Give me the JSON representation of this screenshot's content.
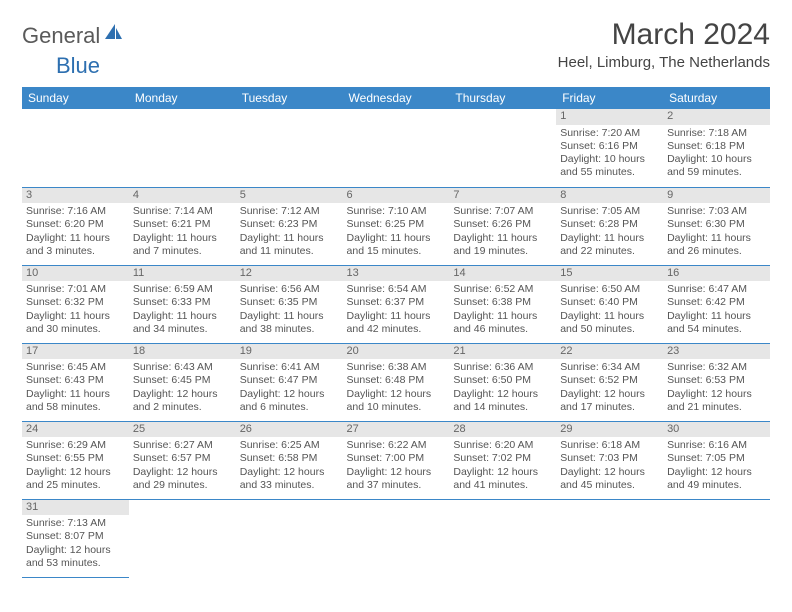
{
  "logo": {
    "general": "General",
    "blue": "Blue"
  },
  "title": "March 2024",
  "location": "Heel, Limburg, The Netherlands",
  "colors": {
    "header_bg": "#3b87c8",
    "header_text": "#ffffff",
    "daynum_bg": "#e6e6e6",
    "border": "#3b87c8",
    "logo_gray": "#5a5a5a",
    "logo_blue": "#2d6fb0",
    "body_text": "#555555"
  },
  "weekdays": [
    "Sunday",
    "Monday",
    "Tuesday",
    "Wednesday",
    "Thursday",
    "Friday",
    "Saturday"
  ],
  "weeks": [
    [
      null,
      null,
      null,
      null,
      null,
      {
        "n": "1",
        "sr": "Sunrise: 7:20 AM",
        "ss": "Sunset: 6:16 PM",
        "d1": "Daylight: 10 hours",
        "d2": "and 55 minutes."
      },
      {
        "n": "2",
        "sr": "Sunrise: 7:18 AM",
        "ss": "Sunset: 6:18 PM",
        "d1": "Daylight: 10 hours",
        "d2": "and 59 minutes."
      }
    ],
    [
      {
        "n": "3",
        "sr": "Sunrise: 7:16 AM",
        "ss": "Sunset: 6:20 PM",
        "d1": "Daylight: 11 hours",
        "d2": "and 3 minutes."
      },
      {
        "n": "4",
        "sr": "Sunrise: 7:14 AM",
        "ss": "Sunset: 6:21 PM",
        "d1": "Daylight: 11 hours",
        "d2": "and 7 minutes."
      },
      {
        "n": "5",
        "sr": "Sunrise: 7:12 AM",
        "ss": "Sunset: 6:23 PM",
        "d1": "Daylight: 11 hours",
        "d2": "and 11 minutes."
      },
      {
        "n": "6",
        "sr": "Sunrise: 7:10 AM",
        "ss": "Sunset: 6:25 PM",
        "d1": "Daylight: 11 hours",
        "d2": "and 15 minutes."
      },
      {
        "n": "7",
        "sr": "Sunrise: 7:07 AM",
        "ss": "Sunset: 6:26 PM",
        "d1": "Daylight: 11 hours",
        "d2": "and 19 minutes."
      },
      {
        "n": "8",
        "sr": "Sunrise: 7:05 AM",
        "ss": "Sunset: 6:28 PM",
        "d1": "Daylight: 11 hours",
        "d2": "and 22 minutes."
      },
      {
        "n": "9",
        "sr": "Sunrise: 7:03 AM",
        "ss": "Sunset: 6:30 PM",
        "d1": "Daylight: 11 hours",
        "d2": "and 26 minutes."
      }
    ],
    [
      {
        "n": "10",
        "sr": "Sunrise: 7:01 AM",
        "ss": "Sunset: 6:32 PM",
        "d1": "Daylight: 11 hours",
        "d2": "and 30 minutes."
      },
      {
        "n": "11",
        "sr": "Sunrise: 6:59 AM",
        "ss": "Sunset: 6:33 PM",
        "d1": "Daylight: 11 hours",
        "d2": "and 34 minutes."
      },
      {
        "n": "12",
        "sr": "Sunrise: 6:56 AM",
        "ss": "Sunset: 6:35 PM",
        "d1": "Daylight: 11 hours",
        "d2": "and 38 minutes."
      },
      {
        "n": "13",
        "sr": "Sunrise: 6:54 AM",
        "ss": "Sunset: 6:37 PM",
        "d1": "Daylight: 11 hours",
        "d2": "and 42 minutes."
      },
      {
        "n": "14",
        "sr": "Sunrise: 6:52 AM",
        "ss": "Sunset: 6:38 PM",
        "d1": "Daylight: 11 hours",
        "d2": "and 46 minutes."
      },
      {
        "n": "15",
        "sr": "Sunrise: 6:50 AM",
        "ss": "Sunset: 6:40 PM",
        "d1": "Daylight: 11 hours",
        "d2": "and 50 minutes."
      },
      {
        "n": "16",
        "sr": "Sunrise: 6:47 AM",
        "ss": "Sunset: 6:42 PM",
        "d1": "Daylight: 11 hours",
        "d2": "and 54 minutes."
      }
    ],
    [
      {
        "n": "17",
        "sr": "Sunrise: 6:45 AM",
        "ss": "Sunset: 6:43 PM",
        "d1": "Daylight: 11 hours",
        "d2": "and 58 minutes."
      },
      {
        "n": "18",
        "sr": "Sunrise: 6:43 AM",
        "ss": "Sunset: 6:45 PM",
        "d1": "Daylight: 12 hours",
        "d2": "and 2 minutes."
      },
      {
        "n": "19",
        "sr": "Sunrise: 6:41 AM",
        "ss": "Sunset: 6:47 PM",
        "d1": "Daylight: 12 hours",
        "d2": "and 6 minutes."
      },
      {
        "n": "20",
        "sr": "Sunrise: 6:38 AM",
        "ss": "Sunset: 6:48 PM",
        "d1": "Daylight: 12 hours",
        "d2": "and 10 minutes."
      },
      {
        "n": "21",
        "sr": "Sunrise: 6:36 AM",
        "ss": "Sunset: 6:50 PM",
        "d1": "Daylight: 12 hours",
        "d2": "and 14 minutes."
      },
      {
        "n": "22",
        "sr": "Sunrise: 6:34 AM",
        "ss": "Sunset: 6:52 PM",
        "d1": "Daylight: 12 hours",
        "d2": "and 17 minutes."
      },
      {
        "n": "23",
        "sr": "Sunrise: 6:32 AM",
        "ss": "Sunset: 6:53 PM",
        "d1": "Daylight: 12 hours",
        "d2": "and 21 minutes."
      }
    ],
    [
      {
        "n": "24",
        "sr": "Sunrise: 6:29 AM",
        "ss": "Sunset: 6:55 PM",
        "d1": "Daylight: 12 hours",
        "d2": "and 25 minutes."
      },
      {
        "n": "25",
        "sr": "Sunrise: 6:27 AM",
        "ss": "Sunset: 6:57 PM",
        "d1": "Daylight: 12 hours",
        "d2": "and 29 minutes."
      },
      {
        "n": "26",
        "sr": "Sunrise: 6:25 AM",
        "ss": "Sunset: 6:58 PM",
        "d1": "Daylight: 12 hours",
        "d2": "and 33 minutes."
      },
      {
        "n": "27",
        "sr": "Sunrise: 6:22 AM",
        "ss": "Sunset: 7:00 PM",
        "d1": "Daylight: 12 hours",
        "d2": "and 37 minutes."
      },
      {
        "n": "28",
        "sr": "Sunrise: 6:20 AM",
        "ss": "Sunset: 7:02 PM",
        "d1": "Daylight: 12 hours",
        "d2": "and 41 minutes."
      },
      {
        "n": "29",
        "sr": "Sunrise: 6:18 AM",
        "ss": "Sunset: 7:03 PM",
        "d1": "Daylight: 12 hours",
        "d2": "and 45 minutes."
      },
      {
        "n": "30",
        "sr": "Sunrise: 6:16 AM",
        "ss": "Sunset: 7:05 PM",
        "d1": "Daylight: 12 hours",
        "d2": "and 49 minutes."
      }
    ],
    [
      {
        "n": "31",
        "sr": "Sunrise: 7:13 AM",
        "ss": "Sunset: 8:07 PM",
        "d1": "Daylight: 12 hours",
        "d2": "and 53 minutes."
      },
      null,
      null,
      null,
      null,
      null,
      null
    ]
  ]
}
